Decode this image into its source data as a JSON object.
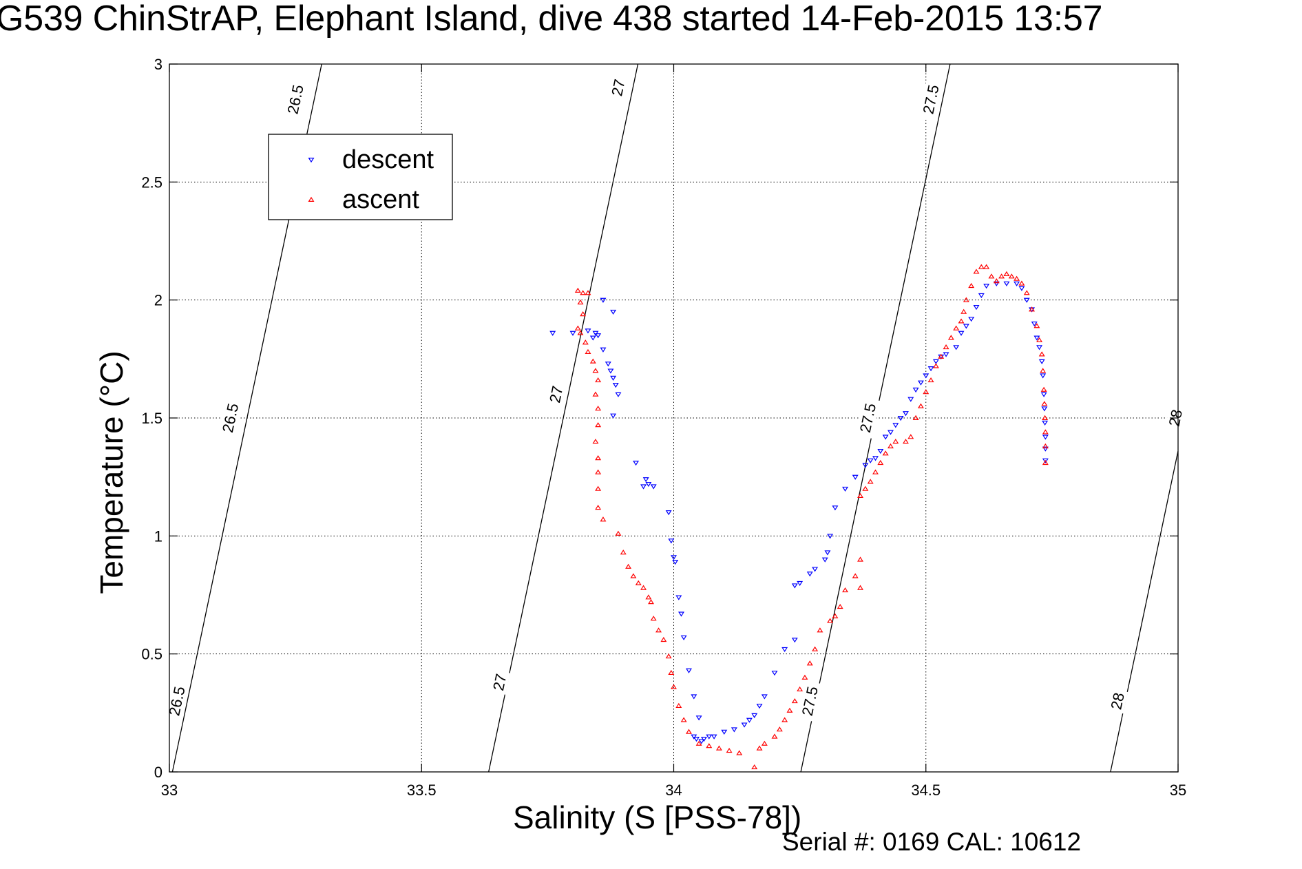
{
  "title": "G539 ChinStrAP, Elephant Island, dive 438 started 14-Feb-2015 13:57",
  "footer": "Serial #: 0169 CAL: 10612",
  "chart_data": {
    "type": "scatter",
    "title": "G539 ChinStrAP, Elephant Island, dive 438 started 14-Feb-2015 13:57",
    "xlabel": "Salinity (S [PSS-78])",
    "ylabel": "Temperature (°C)",
    "xlim": [
      33,
      35
    ],
    "ylim": [
      0,
      3
    ],
    "xticks": [
      33,
      33.5,
      34,
      34.5,
      35
    ],
    "xtick_labels": [
      "33",
      "33.5",
      "34",
      "34.5",
      "35"
    ],
    "yticks": [
      0,
      0.5,
      1,
      1.5,
      2,
      2.5,
      3
    ],
    "ytick_labels": [
      "0",
      "0.5",
      "1",
      "1.5",
      "2",
      "2.5",
      "3"
    ],
    "grid": true,
    "legend_position": "top-left",
    "colors": {
      "descent": "#0000ff",
      "ascent": "#ff0000",
      "contour": "#000000"
    },
    "series": [
      {
        "name": "descent",
        "marker": "triangle-down",
        "color": "#0000ff",
        "points": [
          [
            33.76,
            1.86
          ],
          [
            33.8,
            1.86
          ],
          [
            33.83,
            1.87
          ],
          [
            33.845,
            1.86
          ],
          [
            33.84,
            1.84
          ],
          [
            33.85,
            1.85
          ],
          [
            33.86,
            1.79
          ],
          [
            33.87,
            1.73
          ],
          [
            33.875,
            1.7
          ],
          [
            33.88,
            1.67
          ],
          [
            33.885,
            1.64
          ],
          [
            33.89,
            1.6
          ],
          [
            33.88,
            1.51
          ],
          [
            33.86,
            2.0
          ],
          [
            33.88,
            1.95
          ],
          [
            33.925,
            1.31
          ],
          [
            33.945,
            1.24
          ],
          [
            33.95,
            1.22
          ],
          [
            33.94,
            1.21
          ],
          [
            33.96,
            1.21
          ],
          [
            33.99,
            1.1
          ],
          [
            33.995,
            0.98
          ],
          [
            34.0,
            0.91
          ],
          [
            34.003,
            0.89
          ],
          [
            34.01,
            0.74
          ],
          [
            34.015,
            0.67
          ],
          [
            34.02,
            0.57
          ],
          [
            34.03,
            0.43
          ],
          [
            34.04,
            0.32
          ],
          [
            34.05,
            0.23
          ],
          [
            34.04,
            0.15
          ],
          [
            34.045,
            0.14
          ],
          [
            34.055,
            0.13
          ],
          [
            34.06,
            0.14
          ],
          [
            34.07,
            0.15
          ],
          [
            34.08,
            0.15
          ],
          [
            34.1,
            0.17
          ],
          [
            34.12,
            0.18
          ],
          [
            34.14,
            0.2
          ],
          [
            34.15,
            0.22
          ],
          [
            34.16,
            0.24
          ],
          [
            34.17,
            0.28
          ],
          [
            34.18,
            0.32
          ],
          [
            34.2,
            0.42
          ],
          [
            34.22,
            0.52
          ],
          [
            34.24,
            0.56
          ],
          [
            34.24,
            0.79
          ],
          [
            34.25,
            0.8
          ],
          [
            34.27,
            0.84
          ],
          [
            34.28,
            0.86
          ],
          [
            34.3,
            0.9
          ],
          [
            34.305,
            0.93
          ],
          [
            34.31,
            1.0
          ],
          [
            34.32,
            1.12
          ],
          [
            34.34,
            1.2
          ],
          [
            34.36,
            1.25
          ],
          [
            34.38,
            1.3
          ],
          [
            34.39,
            1.32
          ],
          [
            34.4,
            1.33
          ],
          [
            34.41,
            1.36
          ],
          [
            34.42,
            1.42
          ],
          [
            34.43,
            1.44
          ],
          [
            34.44,
            1.47
          ],
          [
            34.45,
            1.5
          ],
          [
            34.46,
            1.52
          ],
          [
            34.47,
            1.58
          ],
          [
            34.48,
            1.62
          ],
          [
            34.49,
            1.65
          ],
          [
            34.5,
            1.68
          ],
          [
            34.51,
            1.71
          ],
          [
            34.52,
            1.74
          ],
          [
            34.53,
            1.76
          ],
          [
            34.54,
            1.77
          ],
          [
            34.56,
            1.8
          ],
          [
            34.57,
            1.86
          ],
          [
            34.58,
            1.89
          ],
          [
            34.59,
            1.92
          ],
          [
            34.6,
            1.97
          ],
          [
            34.61,
            2.02
          ],
          [
            34.62,
            2.06
          ],
          [
            34.64,
            2.07
          ],
          [
            34.66,
            2.07
          ],
          [
            34.68,
            2.07
          ],
          [
            34.69,
            2.05
          ],
          [
            34.7,
            2.0
          ],
          [
            34.71,
            1.96
          ],
          [
            34.715,
            1.9
          ],
          [
            34.72,
            1.84
          ],
          [
            34.725,
            1.8
          ],
          [
            34.73,
            1.74
          ],
          [
            34.732,
            1.68
          ],
          [
            34.734,
            1.6
          ],
          [
            34.735,
            1.54
          ],
          [
            34.736,
            1.48
          ],
          [
            34.737,
            1.42
          ],
          [
            34.737,
            1.37
          ],
          [
            34.737,
            1.32
          ]
        ]
      },
      {
        "name": "ascent",
        "marker": "triangle-up",
        "color": "#ff0000",
        "points": [
          [
            33.81,
            2.04
          ],
          [
            33.82,
            2.03
          ],
          [
            33.83,
            2.03
          ],
          [
            33.815,
            1.99
          ],
          [
            33.82,
            1.94
          ],
          [
            33.81,
            1.88
          ],
          [
            33.815,
            1.86
          ],
          [
            33.825,
            1.82
          ],
          [
            33.83,
            1.78
          ],
          [
            33.84,
            1.74
          ],
          [
            33.845,
            1.7
          ],
          [
            33.85,
            1.66
          ],
          [
            33.845,
            1.6
          ],
          [
            33.85,
            1.54
          ],
          [
            33.85,
            1.47
          ],
          [
            33.845,
            1.4
          ],
          [
            33.85,
            1.33
          ],
          [
            33.85,
            1.27
          ],
          [
            33.85,
            1.2
          ],
          [
            33.85,
            1.12
          ],
          [
            33.86,
            1.07
          ],
          [
            33.89,
            1.01
          ],
          [
            33.9,
            0.93
          ],
          [
            33.91,
            0.87
          ],
          [
            33.92,
            0.83
          ],
          [
            33.93,
            0.8
          ],
          [
            33.94,
            0.78
          ],
          [
            33.95,
            0.74
          ],
          [
            33.955,
            0.72
          ],
          [
            33.96,
            0.65
          ],
          [
            33.97,
            0.6
          ],
          [
            33.98,
            0.56
          ],
          [
            33.99,
            0.49
          ],
          [
            33.995,
            0.42
          ],
          [
            34.0,
            0.36
          ],
          [
            34.01,
            0.28
          ],
          [
            34.02,
            0.22
          ],
          [
            34.03,
            0.17
          ],
          [
            34.05,
            0.12
          ],
          [
            34.07,
            0.11
          ],
          [
            34.09,
            0.1
          ],
          [
            34.11,
            0.09
          ],
          [
            34.13,
            0.08
          ],
          [
            34.16,
            0.02
          ],
          [
            34.17,
            0.1
          ],
          [
            34.18,
            0.12
          ],
          [
            34.2,
            0.15
          ],
          [
            34.21,
            0.18
          ],
          [
            34.22,
            0.22
          ],
          [
            34.23,
            0.26
          ],
          [
            34.24,
            0.3
          ],
          [
            34.25,
            0.35
          ],
          [
            34.26,
            0.4
          ],
          [
            34.27,
            0.46
          ],
          [
            34.28,
            0.52
          ],
          [
            34.29,
            0.6
          ],
          [
            34.31,
            0.64
          ],
          [
            34.32,
            0.66
          ],
          [
            34.33,
            0.7
          ],
          [
            34.34,
            0.77
          ],
          [
            34.36,
            0.83
          ],
          [
            34.37,
            0.78
          ],
          [
            34.37,
            0.9
          ],
          [
            34.37,
            1.17
          ],
          [
            34.38,
            1.2
          ],
          [
            34.39,
            1.23
          ],
          [
            34.4,
            1.27
          ],
          [
            34.41,
            1.31
          ],
          [
            34.42,
            1.35
          ],
          [
            34.43,
            1.38
          ],
          [
            34.44,
            1.4
          ],
          [
            34.46,
            1.4
          ],
          [
            34.47,
            1.42
          ],
          [
            34.48,
            1.5
          ],
          [
            34.49,
            1.55
          ],
          [
            34.5,
            1.61
          ],
          [
            34.51,
            1.66
          ],
          [
            34.52,
            1.72
          ],
          [
            34.53,
            1.76
          ],
          [
            34.54,
            1.8
          ],
          [
            34.55,
            1.84
          ],
          [
            34.56,
            1.88
          ],
          [
            34.57,
            1.91
          ],
          [
            34.575,
            1.95
          ],
          [
            34.58,
            2.0
          ],
          [
            34.59,
            2.06
          ],
          [
            34.6,
            2.12
          ],
          [
            34.61,
            2.14
          ],
          [
            34.62,
            2.14
          ],
          [
            34.63,
            2.1
          ],
          [
            34.64,
            2.08
          ],
          [
            34.65,
            2.1
          ],
          [
            34.66,
            2.11
          ],
          [
            34.67,
            2.1
          ],
          [
            34.68,
            2.09
          ],
          [
            34.69,
            2.07
          ],
          [
            34.7,
            2.03
          ],
          [
            34.71,
            1.96
          ],
          [
            34.72,
            1.89
          ],
          [
            34.725,
            1.83
          ],
          [
            34.73,
            1.77
          ],
          [
            34.732,
            1.7
          ],
          [
            34.734,
            1.62
          ],
          [
            34.735,
            1.56
          ],
          [
            34.736,
            1.5
          ],
          [
            34.737,
            1.44
          ],
          [
            34.737,
            1.38
          ],
          [
            34.737,
            1.31
          ]
        ]
      }
    ],
    "contours": [
      {
        "label": "26.5",
        "points": [
          [
            33.006,
            0
          ],
          [
            33.302,
            3
          ]
        ],
        "label_positions": [
          [
            33.015,
            0.3
          ],
          [
            33.121,
            1.5
          ],
          [
            33.25,
            2.85
          ]
        ]
      },
      {
        "label": "27",
        "points": [
          [
            33.633,
            0
          ],
          [
            33.929,
            3
          ]
        ],
        "label_positions": [
          [
            33.655,
            0.38
          ],
          [
            33.767,
            1.6
          ],
          [
            33.89,
            2.9
          ]
        ]
      },
      {
        "label": "27.5",
        "points": [
          [
            34.252,
            0
          ],
          [
            34.548,
            3
          ]
        ],
        "label_positions": [
          [
            34.27,
            0.3
          ],
          [
            34.385,
            1.5
          ],
          [
            34.51,
            2.85
          ]
        ]
      },
      {
        "label": "28",
        "points": [
          [
            34.866,
            0
          ],
          [
            35.0,
            1.36
          ]
        ],
        "label_positions": [
          [
            34.88,
            0.3
          ],
          [
            34.995,
            1.5
          ]
        ]
      }
    ]
  }
}
